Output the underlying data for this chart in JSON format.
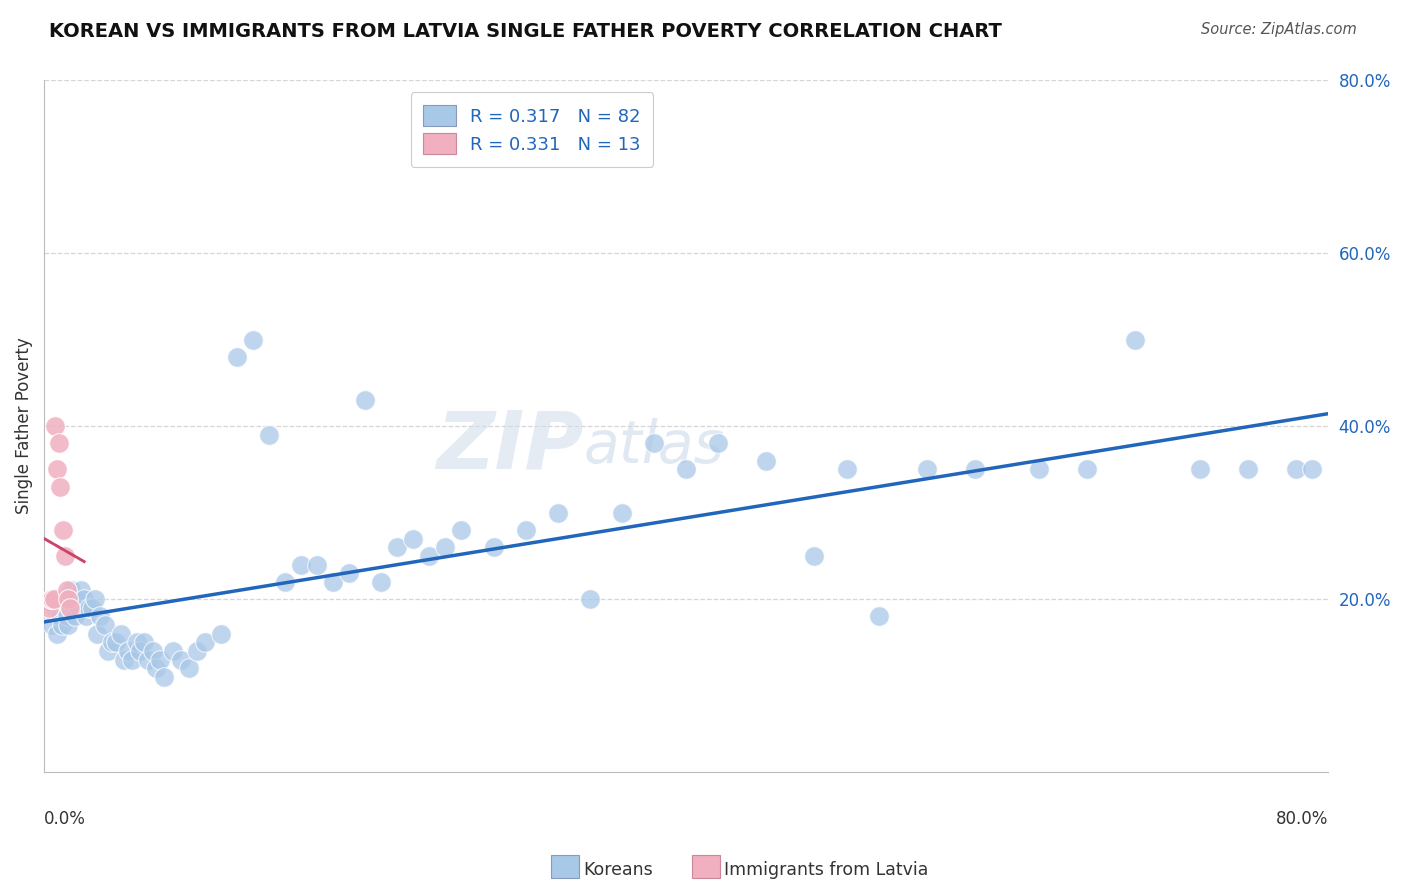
{
  "title": "KOREAN VS IMMIGRANTS FROM LATVIA SINGLE FATHER POVERTY CORRELATION CHART",
  "source": "Source: ZipAtlas.com",
  "ylabel": "Single Father Poverty",
  "legend_label1": "R = 0.317   N = 82",
  "legend_label2": "R = 0.331   N = 13",
  "legend_bottom1": "Koreans",
  "legend_bottom2": "Immigrants from Latvia",
  "korean_R": 0.317,
  "korean_N": 82,
  "latvia_R": 0.331,
  "latvia_N": 13,
  "xlim": [
    0.0,
    0.8
  ],
  "ylim": [
    0.0,
    0.8
  ],
  "background_color": "#ffffff",
  "grid_color": "#cccccc",
  "korean_color": "#a8c8e8",
  "korean_line_color": "#2266bb",
  "latvia_color": "#f0b0c0",
  "latvia_line_color": "#cc4466",
  "watermark_zip": "ZIP",
  "watermark_atlas": "atlas",
  "ytick_labels": [
    "20.0%",
    "40.0%",
    "60.0%",
    "80.0%"
  ],
  "ytick_vals": [
    0.2,
    0.4,
    0.6,
    0.8
  ],
  "korean_x": [
    0.005,
    0.007,
    0.008,
    0.009,
    0.01,
    0.011,
    0.012,
    0.013,
    0.014,
    0.015,
    0.016,
    0.017,
    0.018,
    0.019,
    0.02,
    0.022,
    0.023,
    0.025,
    0.026,
    0.028,
    0.03,
    0.032,
    0.033,
    0.035,
    0.038,
    0.04,
    0.042,
    0.045,
    0.048,
    0.05,
    0.052,
    0.055,
    0.058,
    0.06,
    0.062,
    0.065,
    0.068,
    0.07,
    0.072,
    0.075,
    0.08,
    0.085,
    0.09,
    0.095,
    0.1,
    0.11,
    0.12,
    0.13,
    0.14,
    0.15,
    0.16,
    0.17,
    0.18,
    0.19,
    0.2,
    0.21,
    0.22,
    0.23,
    0.24,
    0.25,
    0.26,
    0.28,
    0.3,
    0.32,
    0.34,
    0.36,
    0.38,
    0.4,
    0.42,
    0.45,
    0.48,
    0.5,
    0.52,
    0.55,
    0.58,
    0.62,
    0.65,
    0.68,
    0.72,
    0.75,
    0.78,
    0.79
  ],
  "korean_y": [
    0.17,
    0.19,
    0.16,
    0.2,
    0.18,
    0.17,
    0.2,
    0.19,
    0.18,
    0.17,
    0.19,
    0.21,
    0.19,
    0.18,
    0.2,
    0.19,
    0.21,
    0.2,
    0.18,
    0.19,
    0.19,
    0.2,
    0.16,
    0.18,
    0.17,
    0.14,
    0.15,
    0.15,
    0.16,
    0.13,
    0.14,
    0.13,
    0.15,
    0.14,
    0.15,
    0.13,
    0.14,
    0.12,
    0.13,
    0.11,
    0.14,
    0.13,
    0.12,
    0.14,
    0.15,
    0.16,
    0.48,
    0.5,
    0.39,
    0.22,
    0.24,
    0.24,
    0.22,
    0.23,
    0.43,
    0.22,
    0.26,
    0.27,
    0.25,
    0.26,
    0.28,
    0.26,
    0.28,
    0.3,
    0.2,
    0.3,
    0.38,
    0.35,
    0.38,
    0.36,
    0.25,
    0.35,
    0.18,
    0.35,
    0.35,
    0.35,
    0.35,
    0.5,
    0.35,
    0.35,
    0.35,
    0.35
  ],
  "latvia_x": [
    0.003,
    0.004,
    0.005,
    0.006,
    0.007,
    0.008,
    0.009,
    0.01,
    0.012,
    0.013,
    0.014,
    0.015,
    0.016
  ],
  "latvia_y": [
    0.19,
    0.2,
    0.2,
    0.2,
    0.4,
    0.35,
    0.38,
    0.33,
    0.28,
    0.25,
    0.21,
    0.2,
    0.19
  ]
}
